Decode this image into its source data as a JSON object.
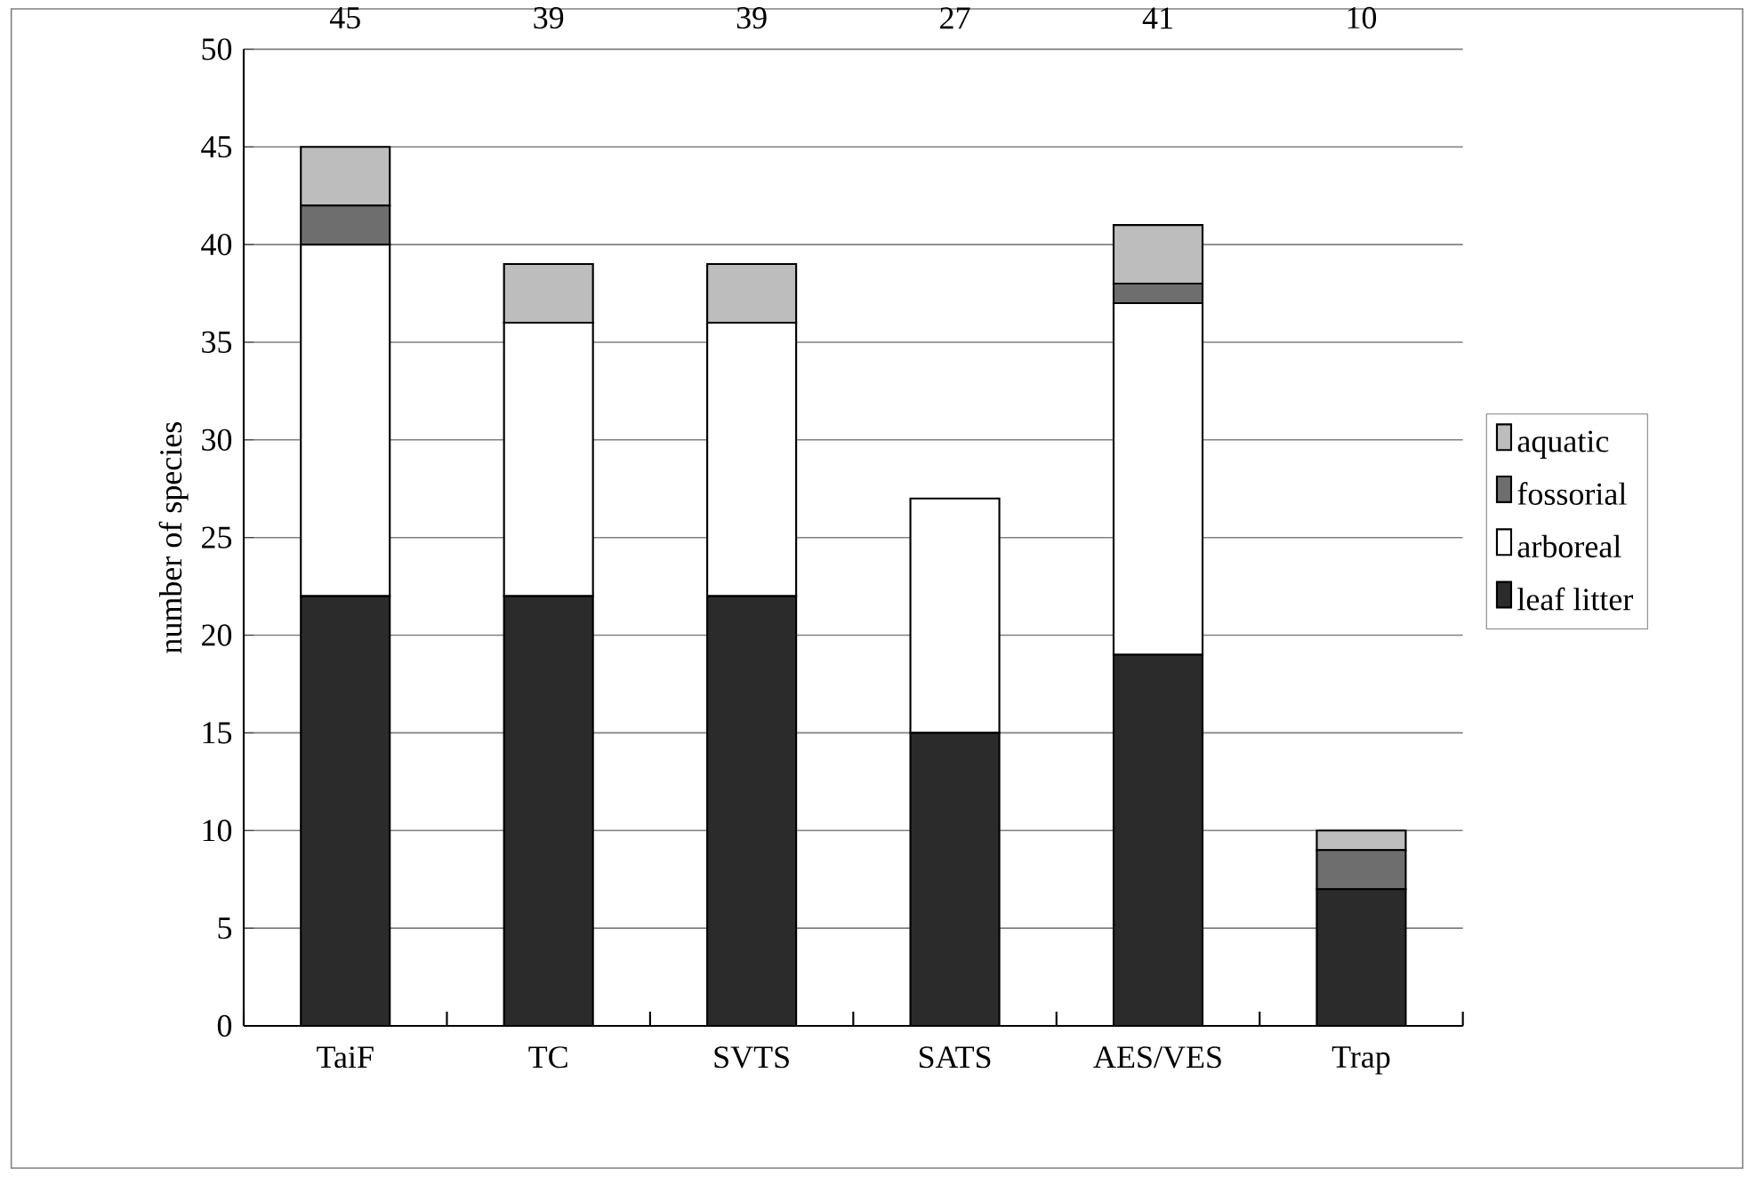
{
  "chart_data": {
    "type": "bar",
    "stacked": true,
    "ylabel": "number of species",
    "categories": [
      "TaiF",
      "TC",
      "SVTS",
      "SATS",
      "AES/VES",
      "Trap"
    ],
    "series": [
      {
        "name": "leaf litter",
        "color": "#2b2b2b",
        "values": [
          22,
          22,
          22,
          15,
          19,
          7
        ]
      },
      {
        "name": "arboreal",
        "color": "#ffffff",
        "values": [
          18,
          14,
          14,
          12,
          18,
          0
        ]
      },
      {
        "name": "fossorial",
        "color": "#6e6e6e",
        "values": [
          2,
          0,
          0,
          0,
          1,
          2
        ]
      },
      {
        "name": "aquatic",
        "color": "#bdbdbd",
        "values": [
          3,
          3,
          3,
          0,
          3,
          1
        ]
      }
    ],
    "annotations": [
      "45",
      "39",
      "39",
      "27",
      "41",
      "10"
    ],
    "ylim": [
      0,
      50
    ],
    "yticks": [
      0,
      5,
      10,
      15,
      20,
      25,
      30,
      35,
      40,
      45,
      50
    ],
    "grid": "y",
    "legend": "right"
  }
}
